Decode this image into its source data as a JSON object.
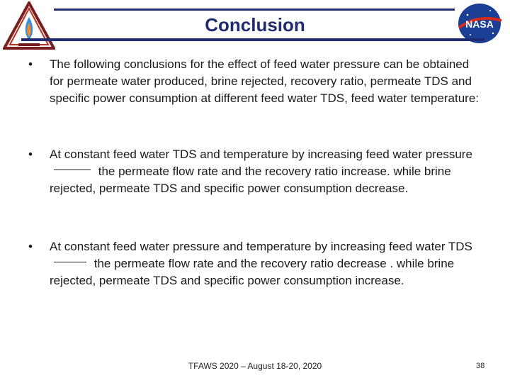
{
  "slide": {
    "title": "Conclusion",
    "bullets": [
      {
        "text": "The following conclusions for the effect of feed water pressure can be obtained for permeate water produced, brine rejected, recovery ratio, permeate TDS and specific power consumption at different feed water TDS, feed water temperature:"
      },
      {
        "before": "At constant feed water TDS and temperature by increasing feed water pressure",
        "after": "the permeate flow rate and the recovery ratio increase. while brine rejected, permeate TDS and specific power consumption decrease."
      },
      {
        "before": "At constant feed water pressure and temperature by increasing feed water TDS",
        "after": "the permeate flow rate and the recovery ratio decrease . while brine rejected, permeate TDS and specific power consumption increase."
      }
    ],
    "footer": "TFAWS 2020 – August 18-20, 2020",
    "page_number": "38"
  },
  "logos": {
    "left": "tfaws-logo",
    "right": "nasa-logo"
  }
}
